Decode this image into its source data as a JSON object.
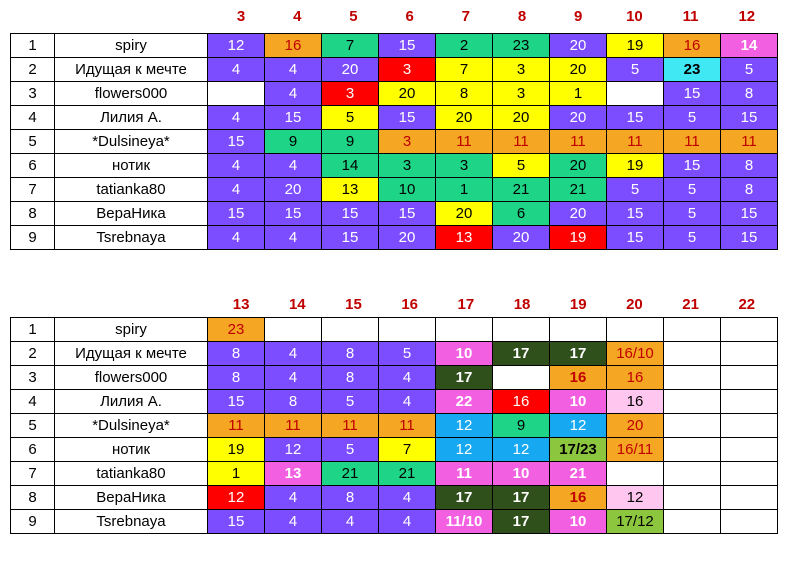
{
  "colors": {
    "P": "#7c4dff",
    "O": "#f5a623",
    "G": "#1ed487",
    "Y": "#ffff00",
    "R": "#ff0000",
    "K": "#f25fe0",
    "C": "#40e8f4",
    "B": "#16a8f0",
    "D": "#2f4f1b",
    "L": "#ffc7ef",
    "V": "#8cc63f",
    "W": "#ffffff"
  },
  "table1": {
    "headers": [
      "3",
      "4",
      "5",
      "6",
      "7",
      "8",
      "9",
      "10",
      "11",
      "12"
    ],
    "rows": [
      {
        "num": "1",
        "name": "spiry",
        "cells": [
          [
            "12",
            "P"
          ],
          [
            "16",
            "O"
          ],
          [
            "7",
            "G"
          ],
          [
            "15",
            "P"
          ],
          [
            "2",
            "G"
          ],
          [
            "23",
            "G"
          ],
          [
            "20",
            "P"
          ],
          [
            "19",
            "Y"
          ],
          [
            "16",
            "O"
          ],
          [
            "14",
            "K",
            "b"
          ]
        ]
      },
      {
        "num": "2",
        "name": "Идущая к мечте",
        "cells": [
          [
            "4",
            "P"
          ],
          [
            "4",
            "P"
          ],
          [
            "20",
            "P"
          ],
          [
            "3",
            "R"
          ],
          [
            "7",
            "Y"
          ],
          [
            "3",
            "Y"
          ],
          [
            "20",
            "Y"
          ],
          [
            "5",
            "P"
          ],
          [
            "23",
            "C",
            "b"
          ],
          [
            "5",
            "P"
          ]
        ]
      },
      {
        "num": "3",
        "name": "flowers000",
        "cells": [
          [
            "",
            "W"
          ],
          [
            "4",
            "P"
          ],
          [
            "3",
            "R"
          ],
          [
            "20",
            "Y"
          ],
          [
            "8",
            "Y"
          ],
          [
            "3",
            "Y"
          ],
          [
            "1",
            "Y"
          ],
          [
            "",
            "W"
          ],
          [
            "15",
            "P"
          ],
          [
            "8",
            "P"
          ]
        ]
      },
      {
        "num": "4",
        "name": "Лилия А.",
        "cells": [
          [
            "4",
            "P"
          ],
          [
            "15",
            "P"
          ],
          [
            "5",
            "Y"
          ],
          [
            "15",
            "P"
          ],
          [
            "20",
            "Y"
          ],
          [
            "20",
            "Y"
          ],
          [
            "20",
            "P"
          ],
          [
            "15",
            "P"
          ],
          [
            "5",
            "P"
          ],
          [
            "15",
            "P"
          ]
        ]
      },
      {
        "num": "5",
        "name": "*Dulsineya*",
        "cells": [
          [
            "15",
            "P"
          ],
          [
            "9",
            "G"
          ],
          [
            "9",
            "G"
          ],
          [
            "3",
            "O"
          ],
          [
            "11",
            "O"
          ],
          [
            "11",
            "O"
          ],
          [
            "11",
            "O"
          ],
          [
            "11",
            "O"
          ],
          [
            "11",
            "O"
          ],
          [
            "11",
            "O"
          ]
        ]
      },
      {
        "num": "6",
        "name": "нотик",
        "cells": [
          [
            "4",
            "P"
          ],
          [
            "4",
            "P"
          ],
          [
            "14",
            "G"
          ],
          [
            "3",
            "G"
          ],
          [
            "3",
            "G"
          ],
          [
            "5",
            "Y"
          ],
          [
            "20",
            "G"
          ],
          [
            "19",
            "Y"
          ],
          [
            "15",
            "P"
          ],
          [
            "8",
            "P"
          ]
        ]
      },
      {
        "num": "7",
        "name": "tatianka80",
        "cells": [
          [
            "4",
            "P"
          ],
          [
            "20",
            "P"
          ],
          [
            "13",
            "Y"
          ],
          [
            "10",
            "G"
          ],
          [
            "1",
            "G"
          ],
          [
            "21",
            "G"
          ],
          [
            "21",
            "G"
          ],
          [
            "5",
            "P"
          ],
          [
            "5",
            "P"
          ],
          [
            "8",
            "P"
          ]
        ]
      },
      {
        "num": "8",
        "name": "ВераНика",
        "cells": [
          [
            "15",
            "P"
          ],
          [
            "15",
            "P"
          ],
          [
            "15",
            "P"
          ],
          [
            "15",
            "P"
          ],
          [
            "20",
            "Y"
          ],
          [
            "6",
            "G"
          ],
          [
            "20",
            "P"
          ],
          [
            "15",
            "P"
          ],
          [
            "5",
            "P"
          ],
          [
            "15",
            "P"
          ]
        ]
      },
      {
        "num": "9",
        "name": "Tsrebnaya",
        "cells": [
          [
            "4",
            "P"
          ],
          [
            "4",
            "P"
          ],
          [
            "15",
            "P"
          ],
          [
            "20",
            "P"
          ],
          [
            "13",
            "R"
          ],
          [
            "20",
            "P"
          ],
          [
            "19",
            "R"
          ],
          [
            "15",
            "P"
          ],
          [
            "5",
            "P"
          ],
          [
            "15",
            "P"
          ]
        ]
      }
    ]
  },
  "table2": {
    "headers": [
      "13",
      "14",
      "15",
      "16",
      "17",
      "18",
      "19",
      "20",
      "21",
      "22"
    ],
    "rows": [
      {
        "num": "1",
        "name": "spiry",
        "cells": [
          [
            "23",
            "O"
          ],
          [
            "",
            "W"
          ],
          [
            "",
            "W"
          ],
          [
            "",
            "W"
          ],
          [
            "",
            "W"
          ],
          [
            "",
            "W"
          ],
          [
            "",
            "W"
          ],
          [
            "",
            "W"
          ],
          [
            "",
            "W"
          ],
          [
            "",
            "W"
          ]
        ]
      },
      {
        "num": "2",
        "name": "Идущая к мечте",
        "cells": [
          [
            "8",
            "P"
          ],
          [
            "4",
            "P"
          ],
          [
            "8",
            "P"
          ],
          [
            "5",
            "P"
          ],
          [
            "10",
            "K",
            "b"
          ],
          [
            "17",
            "D",
            "b"
          ],
          [
            "17",
            "D",
            "b"
          ],
          [
            "16/10",
            "O"
          ],
          [
            "",
            "W"
          ],
          [
            "",
            "W"
          ]
        ]
      },
      {
        "num": "3",
        "name": "flowers000",
        "cells": [
          [
            "8",
            "P"
          ],
          [
            "4",
            "P"
          ],
          [
            "8",
            "P"
          ],
          [
            "4",
            "P"
          ],
          [
            "17",
            "D",
            "b"
          ],
          [
            "",
            "W"
          ],
          [
            "16",
            "O",
            "b"
          ],
          [
            "16",
            "O"
          ],
          [
            "",
            "W"
          ],
          [
            "",
            "W"
          ]
        ]
      },
      {
        "num": "4",
        "name": "Лилия А.",
        "cells": [
          [
            "15",
            "P"
          ],
          [
            "8",
            "P"
          ],
          [
            "5",
            "P"
          ],
          [
            "4",
            "P"
          ],
          [
            "22",
            "K",
            "b"
          ],
          [
            "16",
            "R"
          ],
          [
            "10",
            "K",
            "b"
          ],
          [
            "16",
            "L"
          ],
          [
            "",
            "W"
          ],
          [
            "",
            "W"
          ]
        ]
      },
      {
        "num": "5",
        "name": "*Dulsineya*",
        "cells": [
          [
            "11",
            "O"
          ],
          [
            "11",
            "O"
          ],
          [
            "11",
            "O"
          ],
          [
            "11",
            "O"
          ],
          [
            "12",
            "B"
          ],
          [
            "9",
            "G"
          ],
          [
            "12",
            "B"
          ],
          [
            "20",
            "O"
          ],
          [
            "",
            "W"
          ],
          [
            "",
            "W"
          ]
        ]
      },
      {
        "num": "6",
        "name": "нотик",
        "cells": [
          [
            "19",
            "Y"
          ],
          [
            "12",
            "P"
          ],
          [
            "5",
            "P"
          ],
          [
            "7",
            "Y"
          ],
          [
            "12",
            "B"
          ],
          [
            "12",
            "B"
          ],
          [
            "17/23",
            "V",
            "b"
          ],
          [
            "16/11",
            "O"
          ],
          [
            "",
            "W"
          ],
          [
            "",
            "W"
          ]
        ]
      },
      {
        "num": "7",
        "name": "tatianka80",
        "cells": [
          [
            "1",
            "Y"
          ],
          [
            "13",
            "K",
            "b"
          ],
          [
            "21",
            "G"
          ],
          [
            "21",
            "G"
          ],
          [
            "11",
            "K",
            "b"
          ],
          [
            "10",
            "K",
            "b"
          ],
          [
            "21",
            "K",
            "b"
          ],
          [
            "",
            "W"
          ],
          [
            "",
            "W"
          ],
          [
            "",
            "W"
          ]
        ]
      },
      {
        "num": "8",
        "name": "ВераНика",
        "cells": [
          [
            "12",
            "R"
          ],
          [
            "4",
            "P"
          ],
          [
            "8",
            "P"
          ],
          [
            "4",
            "P"
          ],
          [
            "17",
            "D",
            "b"
          ],
          [
            "17",
            "D",
            "b"
          ],
          [
            "16",
            "O",
            "b"
          ],
          [
            "12",
            "L"
          ],
          [
            "",
            "W"
          ],
          [
            "",
            "W"
          ]
        ]
      },
      {
        "num": "9",
        "name": "Tsrebnaya",
        "cells": [
          [
            "15",
            "P"
          ],
          [
            "4",
            "P"
          ],
          [
            "4",
            "P"
          ],
          [
            "4",
            "P"
          ],
          [
            "11/10",
            "K",
            "b"
          ],
          [
            "17",
            "D",
            "b"
          ],
          [
            "10",
            "K",
            "b"
          ],
          [
            "17/12",
            "V"
          ],
          [
            "",
            "W"
          ],
          [
            "",
            "W"
          ]
        ]
      }
    ]
  }
}
